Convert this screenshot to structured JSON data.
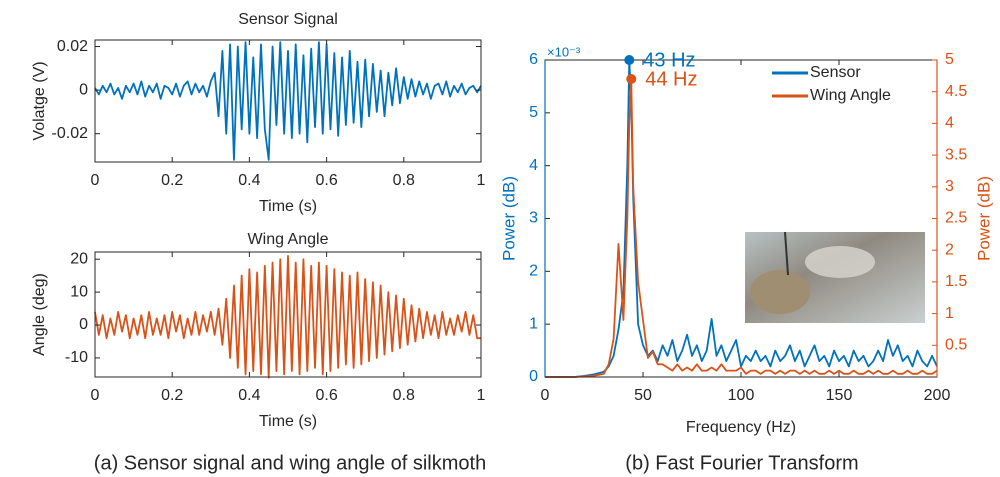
{
  "chart_data": [
    {
      "type": "line",
      "title": "Sensor Signal",
      "xlabel": "Time (s)",
      "ylabel": "Volatge (V)",
      "xlim": [
        0,
        1
      ],
      "xticks": [
        0,
        0.2,
        0.4,
        0.6,
        0.8,
        1
      ],
      "ylim": [
        -0.033,
        0.023
      ],
      "yticks": [
        -0.02,
        0,
        0.02
      ],
      "x": [
        0,
        0.01,
        0.02,
        0.03,
        0.04,
        0.05,
        0.06,
        0.07,
        0.08,
        0.09,
        0.1,
        0.11,
        0.12,
        0.13,
        0.14,
        0.15,
        0.16,
        0.17,
        0.18,
        0.19,
        0.2,
        0.21,
        0.22,
        0.23,
        0.24,
        0.25,
        0.26,
        0.27,
        0.28,
        0.29,
        0.3,
        0.31,
        0.32,
        0.33,
        0.34,
        0.35,
        0.36,
        0.37,
        0.38,
        0.39,
        0.4,
        0.41,
        0.42,
        0.43,
        0.44,
        0.45,
        0.46,
        0.47,
        0.48,
        0.49,
        0.5,
        0.51,
        0.52,
        0.53,
        0.54,
        0.55,
        0.56,
        0.57,
        0.58,
        0.59,
        0.6,
        0.61,
        0.62,
        0.63,
        0.64,
        0.65,
        0.66,
        0.67,
        0.68,
        0.69,
        0.7,
        0.71,
        0.72,
        0.73,
        0.74,
        0.75,
        0.76,
        0.77,
        0.78,
        0.79,
        0.8,
        0.81,
        0.82,
        0.83,
        0.84,
        0.85,
        0.86,
        0.87,
        0.88,
        0.89,
        0.9,
        0.91,
        0.92,
        0.93,
        0.94,
        0.95,
        0.96,
        0.97,
        0.98,
        0.99,
        1
      ],
      "series": [
        {
          "name": "Sensor",
          "color": "#0072BD",
          "values": [
            0.001,
            -0.002,
            0.002,
            -0.001,
            0.003,
            -0.002,
            0.001,
            -0.004,
            0.002,
            -0.001,
            0.003,
            -0.002,
            0.004,
            -0.003,
            0.002,
            -0.001,
            0.003,
            -0.004,
            0.002,
            0.001,
            -0.002,
            0.003,
            -0.003,
            0.002,
            0.004,
            -0.002,
            0.003,
            -0.001,
            0.002,
            -0.003,
            0.004,
            0.008,
            -0.012,
            0.018,
            -0.02,
            0.021,
            -0.032,
            0.02,
            -0.018,
            0.022,
            -0.02,
            0.015,
            -0.022,
            0.021,
            -0.018,
            -0.032,
            0.02,
            -0.016,
            0.022,
            -0.02,
            0.018,
            -0.022,
            0.021,
            -0.02,
            0.016,
            -0.024,
            0.019,
            -0.017,
            0.022,
            -0.02,
            0.021,
            -0.018,
            0.017,
            -0.021,
            0.015,
            -0.016,
            0.018,
            -0.015,
            0.013,
            -0.017,
            0.014,
            -0.012,
            0.012,
            -0.01,
            0.009,
            -0.012,
            0.008,
            -0.007,
            0.01,
            -0.006,
            0.006,
            -0.004,
            0.005,
            -0.003,
            0.004,
            -0.002,
            0.003,
            -0.004,
            0.002,
            0.003,
            -0.002,
            0.004,
            -0.003,
            0.002,
            -0.001,
            0.003,
            -0.002,
            0.001,
            0.002,
            -0.001,
            0.002
          ]
        }
      ]
    },
    {
      "type": "line",
      "title": "Wing Angle",
      "xlabel": "Time (s)",
      "ylabel": "Angle (deg)",
      "xlim": [
        0,
        1
      ],
      "xticks": [
        0,
        0.2,
        0.4,
        0.6,
        0.8,
        1
      ],
      "ylim": [
        -15.8,
        22.2
      ],
      "yticks": [
        -10,
        0,
        10,
        20
      ],
      "x": [
        0,
        0.01,
        0.02,
        0.03,
        0.04,
        0.05,
        0.06,
        0.07,
        0.08,
        0.09,
        0.1,
        0.11,
        0.12,
        0.13,
        0.14,
        0.15,
        0.16,
        0.17,
        0.18,
        0.19,
        0.2,
        0.21,
        0.22,
        0.23,
        0.24,
        0.25,
        0.26,
        0.27,
        0.28,
        0.29,
        0.3,
        0.31,
        0.32,
        0.33,
        0.34,
        0.35,
        0.36,
        0.37,
        0.38,
        0.39,
        0.4,
        0.41,
        0.42,
        0.43,
        0.44,
        0.45,
        0.46,
        0.47,
        0.48,
        0.49,
        0.5,
        0.51,
        0.52,
        0.53,
        0.54,
        0.55,
        0.56,
        0.57,
        0.58,
        0.59,
        0.6,
        0.61,
        0.62,
        0.63,
        0.64,
        0.65,
        0.66,
        0.67,
        0.68,
        0.69,
        0.7,
        0.71,
        0.72,
        0.73,
        0.74,
        0.75,
        0.76,
        0.77,
        0.78,
        0.79,
        0.8,
        0.81,
        0.82,
        0.83,
        0.84,
        0.85,
        0.86,
        0.87,
        0.88,
        0.89,
        0.9,
        0.91,
        0.92,
        0.93,
        0.94,
        0.95,
        0.96,
        0.97,
        0.98,
        0.99,
        1
      ],
      "series": [
        {
          "name": "Wing Angle",
          "color": "#D95319",
          "values": [
            4,
            -3,
            3,
            -4,
            2,
            -3,
            4,
            -2,
            3,
            -4,
            2,
            -3,
            3,
            -4,
            4,
            -3,
            2,
            -3,
            3,
            -4,
            4,
            -2,
            3,
            -4,
            2,
            -3,
            4,
            -3,
            3,
            -2,
            4,
            -3,
            5,
            -6,
            8,
            -10,
            12,
            -13,
            15,
            -15,
            17,
            -14,
            16,
            -15,
            18,
            -16,
            19,
            -14,
            20,
            -15,
            21,
            -14,
            19,
            -15,
            20,
            -14,
            18,
            -13,
            19,
            -15,
            18,
            -14,
            17,
            -13,
            16,
            -12,
            15,
            -13,
            16,
            -12,
            14,
            -11,
            13,
            -10,
            12,
            -9,
            10,
            -8,
            9,
            -7,
            8,
            -6,
            6,
            -5,
            5,
            -4,
            4,
            -3,
            3,
            -4,
            4,
            -3,
            2,
            -3,
            3,
            -2,
            4,
            -3,
            3,
            -4,
            -4
          ]
        }
      ]
    },
    {
      "type": "line",
      "xlabel": "Frequency (Hz)",
      "ylabel": "Power (dB)",
      "y2label": "Power (dB)",
      "y_exponent": "×10⁻³",
      "xlim": [
        0,
        200
      ],
      "xticks": [
        0,
        50,
        100,
        150,
        200
      ],
      "ylim": [
        0,
        6
      ],
      "yticks": [
        0,
        1,
        2,
        3,
        4,
        5,
        6
      ],
      "y2lim": [
        0,
        5
      ],
      "y2ticks": [
        0.5,
        1,
        1.5,
        2,
        2.5,
        3,
        3.5,
        4,
        4.5,
        5
      ],
      "legend": "upper right",
      "x": [
        0,
        5,
        10,
        15,
        20,
        25,
        30,
        32.5,
        35,
        37.5,
        40,
        42,
        43,
        44,
        45,
        47.5,
        50,
        52.5,
        55,
        57.5,
        60,
        62.5,
        65,
        67.5,
        70,
        72.5,
        75,
        77.5,
        80,
        82.5,
        85,
        87.5,
        90,
        92.5,
        95,
        97.5,
        100,
        102.5,
        105,
        107.5,
        110,
        112.5,
        115,
        117.5,
        120,
        122.5,
        125,
        127.5,
        130,
        132.5,
        135,
        137.5,
        140,
        142.5,
        145,
        147.5,
        150,
        152.5,
        155,
        157.5,
        160,
        162.5,
        165,
        167.5,
        170,
        172.5,
        175,
        177.5,
        180,
        182.5,
        185,
        187.5,
        190,
        192.5,
        195,
        197.5,
        200
      ],
      "series": [
        {
          "name": "Sensor",
          "color": "#0072BD",
          "values": [
            0,
            0,
            0,
            0,
            0.02,
            0.05,
            0.1,
            0.2,
            0.4,
            0.9,
            1.6,
            4.0,
            6.0,
            5.2,
            3.4,
            1.0,
            0.6,
            0.4,
            0.5,
            0.3,
            0.6,
            0.4,
            0.7,
            0.3,
            0.5,
            0.8,
            0.4,
            0.6,
            0.3,
            0.5,
            1.1,
            0.4,
            0.6,
            0.3,
            0.5,
            0.7,
            0.2,
            0.4,
            0.3,
            0.5,
            0.3,
            0.4,
            0.2,
            0.5,
            0.3,
            0.4,
            0.6,
            0.3,
            0.5,
            0.2,
            0.4,
            0.6,
            0.3,
            0.4,
            0.2,
            0.5,
            0.3,
            0.4,
            0.2,
            0.5,
            0.3,
            0.4,
            0.2,
            0.3,
            0.5,
            0.3,
            0.7,
            0.4,
            0.6,
            0.3,
            0.4,
            0.2,
            0.5,
            0.3,
            0.2,
            0.4,
            0.2
          ]
        },
        {
          "name": "Wing Angle",
          "color": "#D95319",
          "axis": "y2",
          "values": [
            0,
            0,
            0,
            0,
            0.01,
            0.02,
            0.05,
            0.2,
            0.6,
            2.1,
            0.9,
            2.5,
            4.0,
            4.7,
            3.0,
            1.5,
            0.9,
            0.3,
            0.4,
            0.2,
            0.2,
            0.15,
            0.1,
            0.2,
            0.1,
            0.15,
            0.1,
            0.2,
            0.1,
            0.1,
            0.15,
            0.1,
            0.2,
            0.1,
            0.1,
            0.1,
            0.15,
            0.05,
            0.1,
            0.1,
            0.05,
            0.1,
            0.1,
            0.05,
            0.1,
            0.05,
            0.1,
            0.1,
            0.05,
            0.1,
            0.05,
            0.1,
            0.05,
            0.05,
            0.1,
            0.05,
            0.1,
            0.05,
            0.05,
            0.1,
            0.05,
            0.05,
            0.1,
            0.05,
            0.1,
            0.05,
            0.05,
            0.1,
            0.05,
            0.05,
            0.1,
            0.05,
            0.05,
            0.1,
            0.05,
            0.05,
            0.1
          ]
        }
      ],
      "annotations": [
        {
          "text": "43 Hz",
          "x": 43,
          "y": 6.0,
          "color": "#0072BD"
        },
        {
          "text": "44 Hz",
          "x": 44,
          "y": 4.7,
          "axis": "y2",
          "color": "#D95319"
        }
      ]
    }
  ],
  "captions": [
    "(a) Sensor signal and wing angle of silkmoth",
    "(b) Fast Fourier Transform"
  ]
}
